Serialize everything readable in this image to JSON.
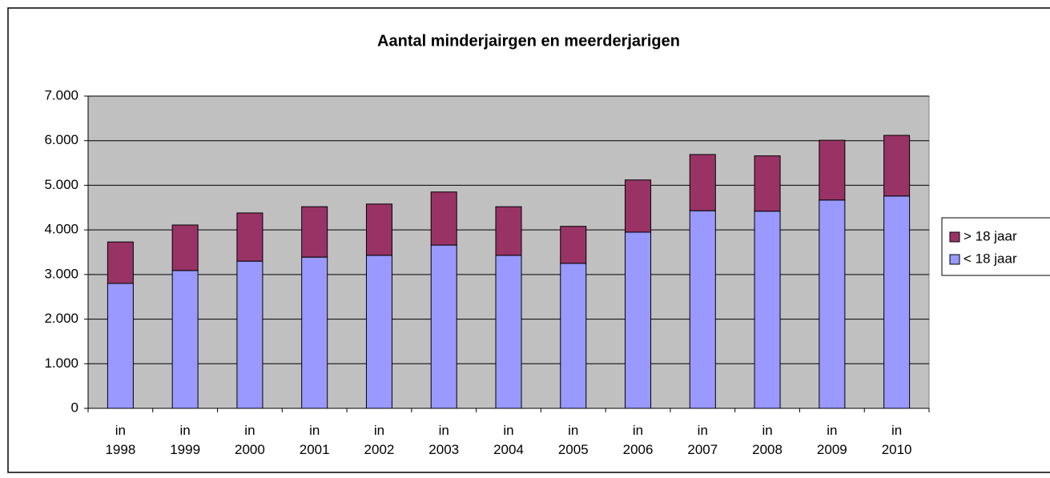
{
  "chart_data": {
    "type": "stacked_bar",
    "title": "Aantal minderjairgen en meerderjarigen",
    "categories": [
      "in 1998",
      "in 1999",
      "in 2000",
      "in 2001",
      "in 2002",
      "in 2003",
      "in 2004",
      "in 2005",
      "in 2006",
      "in 2007",
      "in 2008",
      "in 2009",
      "in 2010"
    ],
    "series": [
      {
        "name": "< 18 jaar",
        "color": "#9999ff",
        "values": [
          2800,
          3090,
          3300,
          3390,
          3430,
          3660,
          3430,
          3250,
          3950,
          4430,
          4420,
          4670,
          4760
        ]
      },
      {
        "name": "> 18 jaar",
        "color": "#993366",
        "values": [
          930,
          1020,
          1080,
          1130,
          1150,
          1190,
          1090,
          830,
          1170,
          1260,
          1240,
          1340,
          1360
        ]
      }
    ],
    "ylim": [
      0,
      7000
    ],
    "yticks": [
      0,
      {
        "value": 1000,
        "label": "1.000"
      },
      {
        "value": 2000,
        "label": "2.000"
      },
      {
        "value": 3000,
        "label": "3.000"
      },
      {
        "value": 4000,
        "label": "4.000"
      },
      {
        "value": 5000,
        "label": "5.000"
      },
      {
        "value": 6000,
        "label": "6.000"
      },
      {
        "value": 7000,
        "label": "7.000"
      }
    ],
    "grid": true,
    "legend": "right"
  }
}
